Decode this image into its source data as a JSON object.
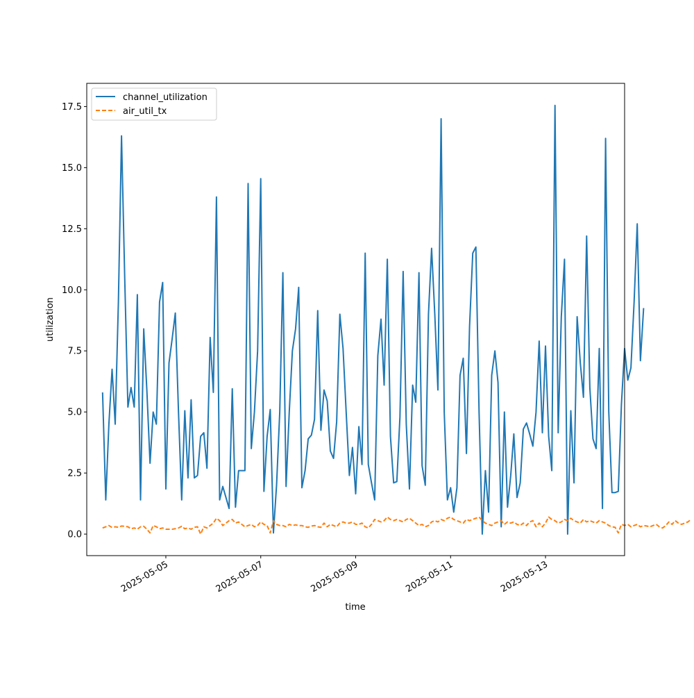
{
  "chart_data": {
    "type": "line",
    "title": "",
    "xlabel": "time",
    "ylabel": "utilization",
    "x_ticks": [
      "2025-05-05",
      "2025-05-07",
      "2025-05-09",
      "2025-05-11",
      "2025-05-13"
    ],
    "y_ticks": [
      "0.0",
      "2.5",
      "5.0",
      "7.5",
      "10.0",
      "12.5",
      "15.0",
      "17.5"
    ],
    "xlim": [
      "2025-05-03T08:00",
      "2025-05-14T16:00"
    ],
    "ylim": [
      -0.88,
      18.45
    ],
    "grid": false,
    "legend": {
      "position": "top-left"
    },
    "x_start": "2025-05-03T16:00",
    "x_step_hours": 1.6,
    "series": [
      {
        "name": "channel_utilization",
        "color": "#1f77b4",
        "style": "solid",
        "values": [
          5.8,
          1.4,
          4.5,
          6.75,
          4.5,
          9.5,
          16.3,
          10.5,
          5.2,
          6.0,
          5.2,
          9.8,
          1.4,
          8.4,
          5.9,
          2.9,
          5.0,
          4.5,
          9.5,
          10.3,
          1.85,
          7.0,
          8.0,
          9.05,
          5.0,
          1.4,
          5.05,
          2.3,
          5.5,
          2.3,
          2.4,
          4.0,
          4.15,
          2.7,
          8.05,
          5.8,
          13.8,
          1.4,
          1.95,
          1.5,
          1.05,
          5.95,
          1.1,
          2.6,
          2.6,
          2.6,
          14.35,
          3.5,
          5.0,
          7.5,
          14.55,
          1.75,
          4.0,
          5.1,
          0.05,
          2.0,
          5.0,
          10.7,
          1.95,
          5.0,
          7.5,
          8.4,
          10.1,
          1.9,
          2.6,
          3.9,
          4.05,
          4.7,
          9.15,
          4.25,
          5.9,
          5.45,
          3.4,
          3.1,
          4.6,
          9.0,
          7.6,
          5.0,
          2.4,
          3.55,
          1.65,
          4.4,
          2.85,
          11.5,
          2.85,
          2.1,
          1.4,
          7.3,
          8.8,
          6.1,
          11.25,
          4.0,
          2.1,
          2.15,
          4.8,
          10.75,
          4.5,
          1.85,
          6.1,
          5.4,
          10.7,
          2.8,
          2.0,
          9.0,
          11.7,
          9.0,
          5.9,
          17.0,
          5.0,
          1.4,
          1.9,
          0.9,
          1.9,
          6.5,
          7.2,
          3.3,
          8.5,
          11.5,
          11.75,
          5.0,
          0.0,
          2.6,
          0.9,
          6.5,
          7.5,
          6.2,
          0.3,
          5.0,
          1.1,
          2.4,
          4.1,
          1.5,
          2.1,
          4.3,
          4.55,
          4.1,
          3.6,
          5.0,
          7.9,
          4.15,
          7.7,
          4.0,
          2.6,
          17.55,
          4.15,
          8.9,
          11.25,
          0.0,
          5.05,
          2.1,
          8.9,
          7.0,
          5.6,
          12.2,
          6.0,
          3.9,
          3.5,
          7.6,
          1.05,
          16.2,
          5.0,
          1.7,
          1.7,
          1.75,
          5.3,
          7.6,
          6.3,
          6.8,
          9.5,
          12.7,
          7.1,
          9.25
        ]
      },
      {
        "name": "air_util_tx",
        "color": "#ff7f0e",
        "style": "dashed",
        "values": [
          0.25,
          0.3,
          0.35,
          0.27,
          0.3,
          0.28,
          0.33,
          0.32,
          0.3,
          0.22,
          0.25,
          0.2,
          0.3,
          0.32,
          0.2,
          0.05,
          0.35,
          0.3,
          0.22,
          0.25,
          0.2,
          0.2,
          0.2,
          0.22,
          0.25,
          0.32,
          0.22,
          0.25,
          0.2,
          0.28,
          0.3,
          0.0,
          0.3,
          0.25,
          0.35,
          0.45,
          0.65,
          0.55,
          0.35,
          0.45,
          0.55,
          0.6,
          0.45,
          0.5,
          0.4,
          0.3,
          0.35,
          0.4,
          0.3,
          0.35,
          0.5,
          0.4,
          0.35,
          0.05,
          0.55,
          0.4,
          0.35,
          0.35,
          0.3,
          0.4,
          0.35,
          0.38,
          0.35,
          0.35,
          0.3,
          0.28,
          0.33,
          0.35,
          0.3,
          0.28,
          0.45,
          0.3,
          0.4,
          0.35,
          0.3,
          0.45,
          0.5,
          0.45,
          0.45,
          0.5,
          0.4,
          0.4,
          0.45,
          0.3,
          0.25,
          0.4,
          0.6,
          0.55,
          0.5,
          0.55,
          0.7,
          0.6,
          0.55,
          0.6,
          0.55,
          0.5,
          0.6,
          0.65,
          0.55,
          0.45,
          0.35,
          0.4,
          0.3,
          0.35,
          0.5,
          0.55,
          0.5,
          0.6,
          0.55,
          0.65,
          0.7,
          0.6,
          0.55,
          0.5,
          0.45,
          0.6,
          0.55,
          0.6,
          0.65,
          0.7,
          0.55,
          0.45,
          0.4,
          0.35,
          0.45,
          0.5,
          0.55,
          0.4,
          0.5,
          0.45,
          0.5,
          0.4,
          0.35,
          0.45,
          0.35,
          0.5,
          0.55,
          0.3,
          0.45,
          0.3,
          0.45,
          0.7,
          0.6,
          0.55,
          0.45,
          0.5,
          0.6,
          0.55,
          0.65,
          0.55,
          0.5,
          0.45,
          0.6,
          0.5,
          0.55,
          0.5,
          0.45,
          0.55,
          0.5,
          0.45,
          0.35,
          0.3,
          0.28,
          0.05,
          0.4,
          0.35,
          0.4,
          0.3,
          0.35,
          0.4,
          0.3,
          0.35,
          0.33,
          0.3,
          0.35,
          0.4,
          0.3,
          0.25,
          0.35,
          0.5,
          0.4,
          0.55,
          0.45,
          0.4,
          0.45,
          0.5,
          0.6
        ]
      }
    ]
  }
}
